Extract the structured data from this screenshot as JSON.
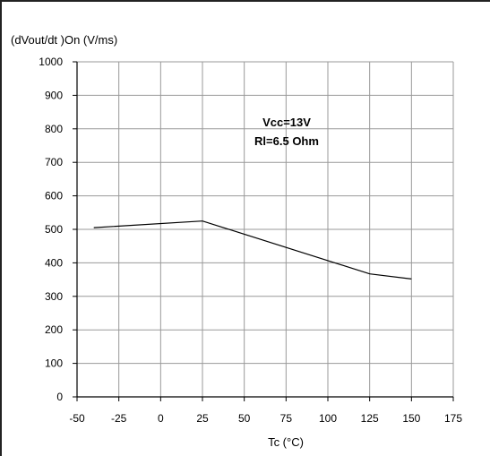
{
  "chart_data": {
    "type": "line",
    "title": "",
    "ylabel": "(dVout/dt )On (V/ms)",
    "xlabel": "Tc (°C)",
    "xlim": [
      -50,
      175
    ],
    "ylim": [
      0,
      1000
    ],
    "x_ticks": [
      -50,
      -25,
      0,
      25,
      50,
      75,
      100,
      125,
      150,
      175
    ],
    "y_ticks": [
      0,
      100,
      200,
      300,
      400,
      500,
      600,
      700,
      800,
      900,
      1000
    ],
    "grid": true,
    "annotations": [
      "Vcc=13V",
      "Rl=6.5 Ohm"
    ],
    "series": [
      {
        "x": [
          -40,
          25,
          125,
          150
        ],
        "y": [
          505,
          525,
          367,
          352
        ],
        "color": "#000000"
      }
    ]
  }
}
